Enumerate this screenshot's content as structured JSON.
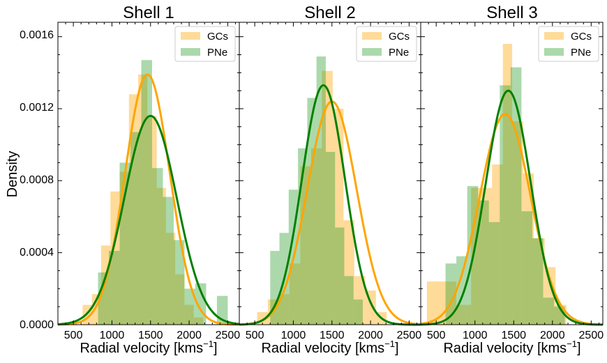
{
  "chart_data": {
    "type": "bar",
    "ylabel": "Density",
    "xlabel": "Radial velocity [kms",
    "xlabel_sup": "−1",
    "xlabel_close": "]",
    "ylim": [
      0,
      0.00168
    ],
    "xlim": [
      300,
      2650
    ],
    "yticks": [
      "0.0000",
      "0.0004",
      "0.0008",
      "0.0012",
      "0.0016"
    ],
    "ytick_values": [
      0,
      0.0004,
      0.0008,
      0.0012,
      0.0016
    ],
    "xticks": [
      "500",
      "1000",
      "1500",
      "2000",
      "2500"
    ],
    "xtick_values": [
      500,
      1000,
      1500,
      2000,
      2500
    ],
    "colors": {
      "gcs": "#ffa500",
      "pne": "#2ca02c",
      "gcs_line": "#ffa500",
      "pne_line": "#008000"
    },
    "panels": [
      {
        "title": "Shell 1",
        "legend": [
          "GCs",
          "PNe"
        ],
        "gcs_hist": {
          "edges": [
            620,
            740,
            860,
            980,
            1100,
            1220,
            1340,
            1460,
            1580,
            1700,
            1820,
            1940,
            2060,
            2180
          ],
          "heights": [
            0.00011,
            0.00017,
            0.00044,
            0.00074,
            0.00085,
            0.00128,
            0.00139,
            0.00116,
            0.00076,
            0.00051,
            0.00028,
            0.00011,
            4e-05
          ]
        },
        "pne_hist": {
          "edges": [
            820,
            960,
            1100,
            1240,
            1380,
            1520,
            1660,
            1800,
            1940,
            2080,
            2220,
            2360,
            2500
          ],
          "heights": [
            0.00029,
            0.00041,
            0.0009,
            0.00107,
            0.00147,
            0.00087,
            0.00071,
            0.00047,
            0.0002,
            0.00023,
            0.0,
            0.00016
          ]
        },
        "gcs_fit": {
          "mean": 1460,
          "sd": 290,
          "peak": 0.00139
        },
        "pne_fit": {
          "mean": 1500,
          "sd": 340,
          "peak": 0.00116
        }
      },
      {
        "title": "Shell 2",
        "legend": [
          "GCs",
          "PNe"
        ],
        "gcs_hist": {
          "edges": [
            530,
            670,
            810,
            950,
            1090,
            1230,
            1370,
            1510,
            1650,
            1790,
            1930,
            2070,
            2210
          ],
          "heights": [
            7e-05,
            0.00014,
            0.00017,
            0.00034,
            0.00088,
            0.00098,
            0.00141,
            0.0012,
            0.00058,
            0.00027,
            0.00019,
            7e-05
          ]
        },
        "pne_hist": {
          "edges": [
            700,
            820,
            940,
            1060,
            1180,
            1300,
            1420,
            1540,
            1660,
            1780,
            1900
          ],
          "heights": [
            0.00041,
            0.00051,
            0.00075,
            0.00098,
            0.00126,
            0.00149,
            0.00096,
            0.00054,
            0.00027,
            0.00014
          ]
        },
        "gcs_fit": {
          "mean": 1500,
          "sd": 320,
          "peak": 0.00124
        },
        "pne_fit": {
          "mean": 1390,
          "sd": 280,
          "peak": 0.00133
        }
      },
      {
        "title": "Shell 3",
        "legend": [
          "GCs",
          "PNe"
        ],
        "gcs_hist": {
          "edges": [
            380,
            760,
            950,
            1080,
            1220,
            1360,
            1480,
            1620,
            1760,
            1900,
            2040,
            2180
          ],
          "heights": [
            0.00024,
            0.00011,
            0.00076,
            0.00076,
            0.00089,
            0.00156,
            0.00113,
            0.00084,
            0.00048,
            0.00032,
            0.00011
          ]
        },
        "pne_hist": {
          "edges": [
            620,
            760,
            900,
            1040,
            1180,
            1320,
            1460,
            1600,
            1740,
            1880,
            2020,
            2160,
            2300
          ],
          "heights": [
            0.00034,
            0.00038,
            0.00077,
            0.00069,
            0.00057,
            0.00133,
            0.00143,
            0.00063,
            0.00048,
            0.00015,
            0.0001,
            0.0
          ]
        },
        "gcs_fit": {
          "mean": 1390,
          "sd": 330,
          "peak": 0.00117
        },
        "pne_fit": {
          "mean": 1430,
          "sd": 290,
          "peak": 0.0013
        }
      }
    ]
  }
}
